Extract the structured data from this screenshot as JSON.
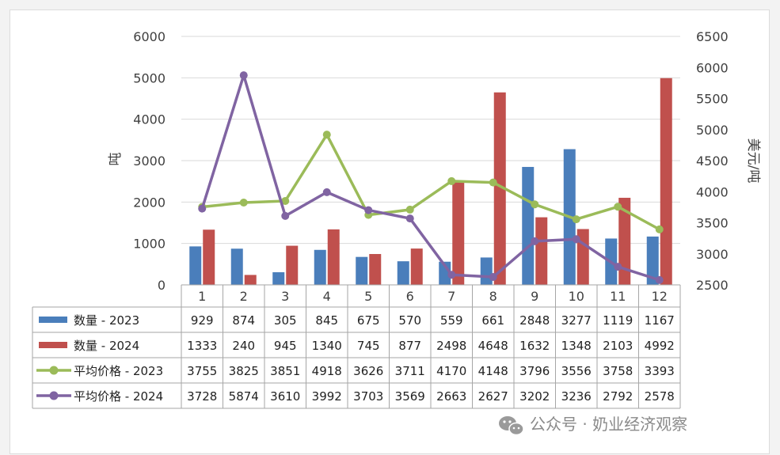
{
  "chart_data": {
    "type": "bar+line",
    "categories": [
      "1",
      "2",
      "3",
      "4",
      "5",
      "6",
      "7",
      "8",
      "9",
      "10",
      "11",
      "12"
    ],
    "series": [
      {
        "name": "数量 - 2023",
        "kind": "bar",
        "axis": "left",
        "color": "#4a7ebb",
        "values": [
          929,
          874,
          305,
          845,
          675,
          570,
          559,
          661,
          2848,
          3277,
          1119,
          1167
        ]
      },
      {
        "name": "数量 - 2024",
        "kind": "bar",
        "axis": "left",
        "color": "#c0504d",
        "values": [
          1333,
          240,
          945,
          1340,
          745,
          877,
          2498,
          4648,
          1632,
          1348,
          2103,
          4992
        ]
      },
      {
        "name": "平均价格 - 2023",
        "kind": "line",
        "axis": "right",
        "color": "#9bbb59",
        "values": [
          3755,
          3825,
          3851,
          4918,
          3626,
          3711,
          4170,
          4148,
          3796,
          3556,
          3758,
          3393
        ]
      },
      {
        "name": "平均价格 - 2024",
        "kind": "line",
        "axis": "right",
        "color": "#8064a2",
        "values": [
          3728,
          5874,
          3610,
          3992,
          3703,
          3569,
          2663,
          2627,
          3202,
          3236,
          2792,
          2578
        ]
      }
    ],
    "ylabel": "吨",
    "y2label": "美元/吨",
    "ylim": [
      0,
      6000
    ],
    "y2lim": [
      2500,
      6500
    ],
    "yticks": [
      0,
      1000,
      2000,
      3000,
      4000,
      5000,
      6000
    ],
    "y2ticks": [
      2500,
      3000,
      3500,
      4000,
      4500,
      5000,
      5500,
      6000,
      6500
    ],
    "grid": true,
    "legend": "data-table-below"
  },
  "watermark": {
    "icon": "wechat-icon",
    "text": "公众号 · 奶业经济观察"
  }
}
